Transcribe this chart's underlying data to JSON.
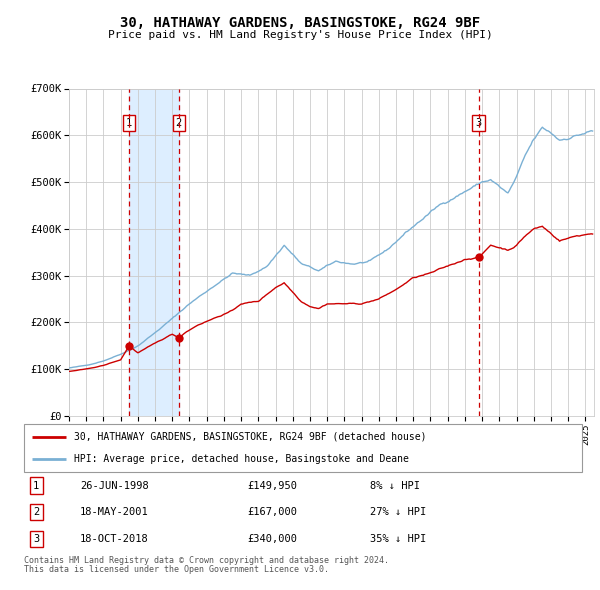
{
  "title": "30, HATHAWAY GARDENS, BASINGSTOKE, RG24 9BF",
  "subtitle": "Price paid vs. HM Land Registry's House Price Index (HPI)",
  "legend_line1": "30, HATHAWAY GARDENS, BASINGSTOKE, RG24 9BF (detached house)",
  "legend_line2": "HPI: Average price, detached house, Basingstoke and Deane",
  "footnote1": "Contains HM Land Registry data © Crown copyright and database right 2024.",
  "footnote2": "This data is licensed under the Open Government Licence v3.0.",
  "sale_labels": [
    "1",
    "2",
    "3"
  ],
  "sale_dates_str": [
    "26-JUN-1998",
    "18-MAY-2001",
    "18-OCT-2018"
  ],
  "sale_prices": [
    149950,
    167000,
    340000
  ],
  "sale_hpi_diff": [
    "8% ↓ HPI",
    "27% ↓ HPI",
    "35% ↓ HPI"
  ],
  "sale_dates_num": [
    1998.49,
    2001.38,
    2018.79
  ],
  "red_line_color": "#cc0000",
  "blue_line_color": "#7ab0d4",
  "dashed_line_color": "#cc0000",
  "shade_color": "#ddeeff",
  "background_color": "#ffffff",
  "grid_color": "#cccccc",
  "ylim": [
    0,
    700000
  ],
  "xlim_start": 1995.0,
  "xlim_end": 2025.5,
  "yticks": [
    0,
    100000,
    200000,
    300000,
    400000,
    500000,
    600000,
    700000
  ],
  "ytick_labels": [
    "£0",
    "£100K",
    "£200K",
    "£300K",
    "£400K",
    "£500K",
    "£600K",
    "£700K"
  ],
  "xticks": [
    1995,
    1996,
    1997,
    1998,
    1999,
    2000,
    2001,
    2002,
    2003,
    2004,
    2005,
    2006,
    2007,
    2008,
    2009,
    2010,
    2011,
    2012,
    2013,
    2014,
    2015,
    2016,
    2017,
    2018,
    2019,
    2020,
    2021,
    2022,
    2023,
    2024,
    2025
  ],
  "hpi_waypoints": [
    [
      1995.0,
      102000
    ],
    [
      1996.0,
      108000
    ],
    [
      1997.0,
      118000
    ],
    [
      1998.0,
      132000
    ],
    [
      1999.0,
      150000
    ],
    [
      2000.0,
      178000
    ],
    [
      2001.0,
      208000
    ],
    [
      2002.0,
      240000
    ],
    [
      2003.5,
      280000
    ],
    [
      2004.5,
      305000
    ],
    [
      2005.5,
      300000
    ],
    [
      2006.5,
      320000
    ],
    [
      2007.5,
      365000
    ],
    [
      2008.5,
      325000
    ],
    [
      2009.5,
      310000
    ],
    [
      2010.5,
      330000
    ],
    [
      2011.5,
      325000
    ],
    [
      2012.5,
      330000
    ],
    [
      2013.5,
      355000
    ],
    [
      2014.5,
      390000
    ],
    [
      2015.5,
      420000
    ],
    [
      2016.5,
      450000
    ],
    [
      2017.5,
      470000
    ],
    [
      2018.5,
      490000
    ],
    [
      2019.0,
      500000
    ],
    [
      2019.5,
      505000
    ],
    [
      2020.0,
      490000
    ],
    [
      2020.5,
      475000
    ],
    [
      2021.0,
      510000
    ],
    [
      2021.5,
      555000
    ],
    [
      2022.0,
      590000
    ],
    [
      2022.5,
      615000
    ],
    [
      2023.0,
      605000
    ],
    [
      2023.5,
      590000
    ],
    [
      2024.0,
      595000
    ],
    [
      2024.5,
      600000
    ],
    [
      2025.3,
      608000
    ]
  ],
  "red_waypoints": [
    [
      1995.0,
      95000
    ],
    [
      1996.0,
      100000
    ],
    [
      1997.0,
      108000
    ],
    [
      1998.0,
      120000
    ],
    [
      1998.49,
      149950
    ],
    [
      1999.0,
      135000
    ],
    [
      2000.0,
      155000
    ],
    [
      2001.0,
      175000
    ],
    [
      2001.38,
      167000
    ],
    [
      2001.8,
      180000
    ],
    [
      2002.5,
      195000
    ],
    [
      2003.5,
      210000
    ],
    [
      2004.5,
      225000
    ],
    [
      2005.0,
      240000
    ],
    [
      2006.0,
      245000
    ],
    [
      2007.0,
      275000
    ],
    [
      2007.5,
      285000
    ],
    [
      2008.5,
      245000
    ],
    [
      2009.0,
      235000
    ],
    [
      2009.5,
      230000
    ],
    [
      2010.0,
      240000
    ],
    [
      2011.0,
      240000
    ],
    [
      2012.0,
      240000
    ],
    [
      2013.0,
      250000
    ],
    [
      2014.0,
      270000
    ],
    [
      2015.0,
      295000
    ],
    [
      2016.0,
      305000
    ],
    [
      2017.0,
      320000
    ],
    [
      2018.0,
      335000
    ],
    [
      2018.79,
      340000
    ],
    [
      2019.0,
      345000
    ],
    [
      2019.5,
      365000
    ],
    [
      2020.0,
      360000
    ],
    [
      2020.5,
      355000
    ],
    [
      2021.0,
      365000
    ],
    [
      2021.5,
      385000
    ],
    [
      2022.0,
      400000
    ],
    [
      2022.5,
      405000
    ],
    [
      2023.0,
      390000
    ],
    [
      2023.5,
      375000
    ],
    [
      2024.0,
      380000
    ],
    [
      2024.5,
      385000
    ],
    [
      2025.3,
      390000
    ]
  ]
}
